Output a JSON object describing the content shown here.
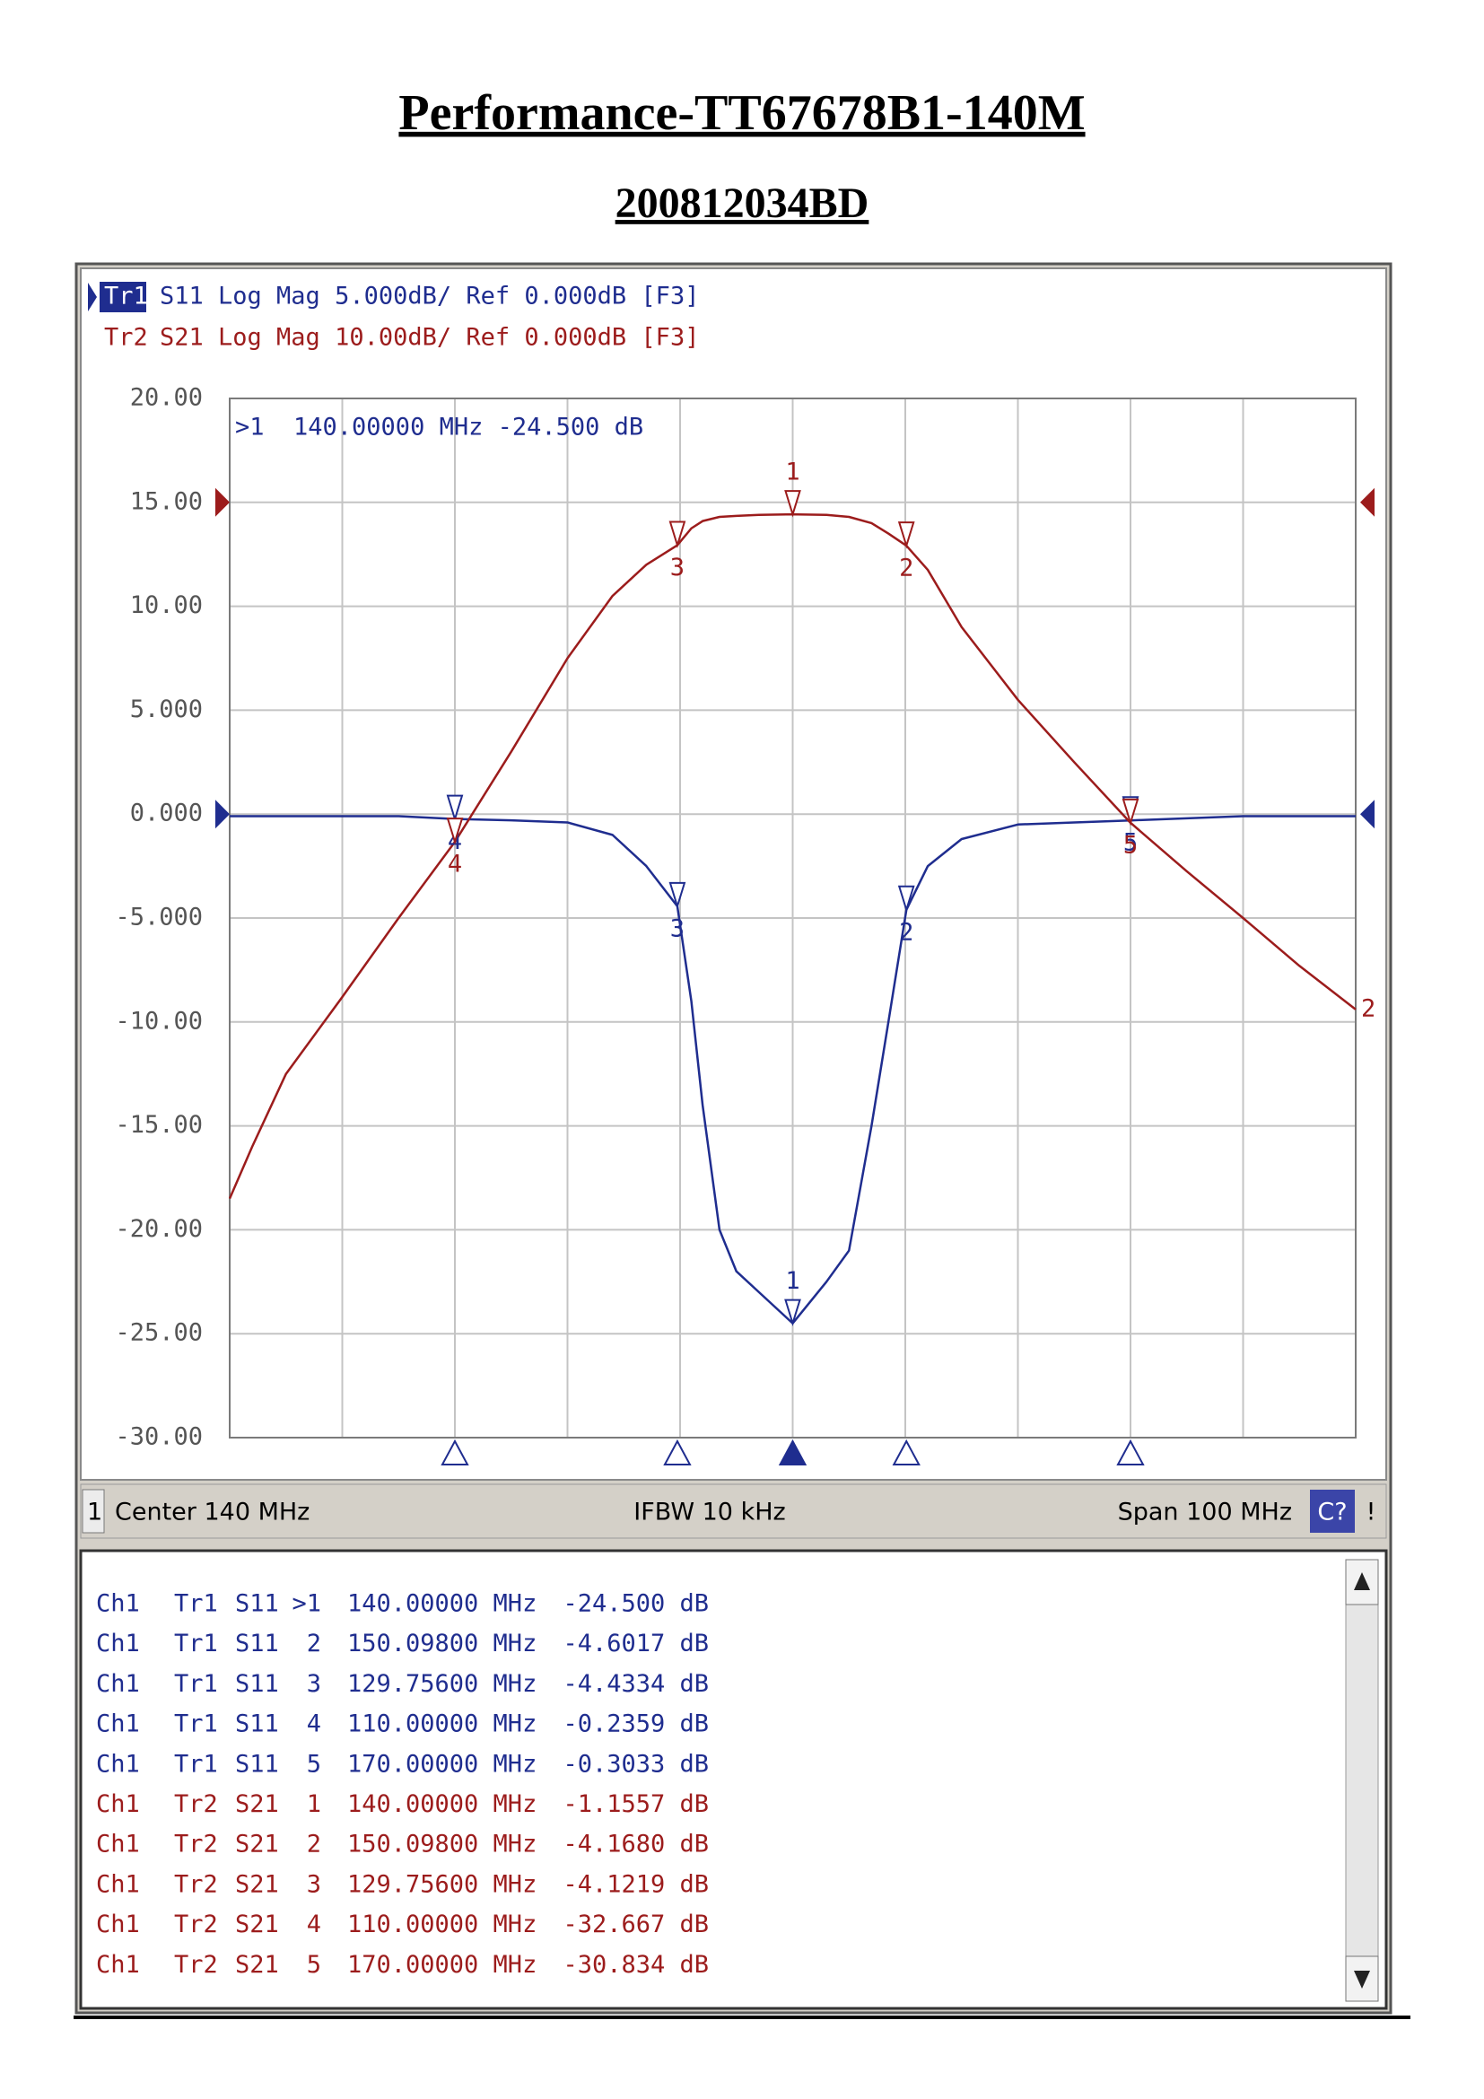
{
  "header": {
    "title": "Performance-TT67678B1-140M",
    "subtitle": "200812034BD"
  },
  "chart_data": {
    "type": "line",
    "annotation": ">1  140.00000 MHz -24.500 dB",
    "x": [
      90,
      92,
      95,
      100,
      105,
      110,
      115,
      120,
      124,
      127,
      129.756,
      131,
      132,
      133.5,
      135,
      137,
      140,
      143,
      145,
      147,
      148.5,
      150.098,
      152,
      155,
      160,
      165,
      170,
      175,
      180,
      185,
      190
    ],
    "xlim": [
      90,
      190
    ],
    "xticks": [
      90,
      100,
      110,
      120,
      130,
      140,
      150,
      160,
      170,
      180,
      190
    ],
    "ylim": [
      -30,
      20
    ],
    "yticks": [
      {
        "value": 20,
        "label": "20.00"
      },
      {
        "value": 15,
        "label": "15.00"
      },
      {
        "value": 10,
        "label": "10.00"
      },
      {
        "value": 5,
        "label": "5.000"
      },
      {
        "value": 0,
        "label": "0.000"
      },
      {
        "value": -5,
        "label": "-5.000"
      },
      {
        "value": -10,
        "label": "-10.00"
      },
      {
        "value": -15,
        "label": "-15.00"
      },
      {
        "value": -20,
        "label": "-20.00"
      },
      {
        "value": -25,
        "label": "-25.00"
      },
      {
        "value": -30,
        "label": "-30.00"
      }
    ],
    "y2lim": [
      -90,
      10
    ],
    "grid": true,
    "markers": {
      "labels": [
        "1",
        "2",
        "3",
        "4",
        "5"
      ],
      "x": [
        140,
        150.098,
        129.756,
        110,
        170
      ]
    },
    "series": [
      {
        "name": "Tr1",
        "header": "S11 Log Mag 5.000dB/ Ref 0.000dB [F3]",
        "color": "#1f2d8f",
        "values": [
          -0.1,
          -0.1,
          -0.1,
          -0.1,
          -0.1,
          -0.2359,
          -0.3,
          -0.4,
          -1,
          -2.5,
          -4.4334,
          -9,
          -14,
          -20,
          -22,
          -23,
          -24.5,
          -22.5,
          -21,
          -15,
          -10,
          -4.6017,
          -2.5,
          -1.2,
          -0.5,
          -0.4,
          -0.3033,
          -0.2,
          -0.1,
          -0.1,
          -0.1
        ],
        "marker_values": [
          -24.5,
          -4.6017,
          -4.4334,
          -0.2359,
          -0.3033
        ]
      },
      {
        "name": "Tr2",
        "header": "S21 Log Mag 10.00dB/ Ref 0.000dB [F3]",
        "color": "#9c1c1c",
        "axis": "y2",
        "end_label": "2",
        "values": [
          -67,
          -62,
          -55,
          -47.6,
          -40,
          -32.667,
          -24,
          -15,
          -9,
          -6,
          -4.1219,
          -2.5,
          -1.8,
          -1.4,
          -1.3,
          -1.2,
          -1.1557,
          -1.2,
          -1.4,
          -2,
          -3,
          -4.168,
          -6.5,
          -12,
          -19,
          -25,
          -30.834,
          -35.5,
          -40,
          -44.6,
          -48.8
        ],
        "marker_values": [
          -1.1557,
          -4.168,
          -4.1219,
          -32.667,
          -30.834
        ]
      }
    ]
  },
  "status_bar": {
    "channel": "1",
    "center": "Center 140 MHz",
    "ifbw": "IFBW 10 kHz",
    "span": "Span 100 MHz",
    "indicator": "C?",
    "flag": "!"
  },
  "marker_table": {
    "rows": [
      [
        "Ch1",
        "Tr1",
        "S11",
        ">1",
        "140.00000 MHz",
        "-24.500 dB"
      ],
      [
        "Ch1",
        "Tr1",
        "S11",
        "2",
        "150.09800 MHz",
        "-4.6017 dB"
      ],
      [
        "Ch1",
        "Tr1",
        "S11",
        "3",
        "129.75600 MHz",
        "-4.4334 dB"
      ],
      [
        "Ch1",
        "Tr1",
        "S11",
        "4",
        "110.00000 MHz",
        "-0.2359 dB"
      ],
      [
        "Ch1",
        "Tr1",
        "S11",
        "5",
        "170.00000 MHz",
        "-0.3033 dB"
      ],
      [
        "Ch1",
        "Tr2",
        "S21",
        "1",
        "140.00000 MHz",
        "-1.1557 dB"
      ],
      [
        "Ch1",
        "Tr2",
        "S21",
        "2",
        "150.09800 MHz",
        "-4.1680 dB"
      ],
      [
        "Ch1",
        "Tr2",
        "S21",
        "3",
        "129.75600 MHz",
        "-4.1219 dB"
      ],
      [
        "Ch1",
        "Tr2",
        "S21",
        "4",
        "110.00000 MHz",
        "-32.667 dB"
      ],
      [
        "Ch1",
        "Tr2",
        "S21",
        "5",
        "170.00000 MHz",
        "-30.834 dB"
      ]
    ]
  }
}
